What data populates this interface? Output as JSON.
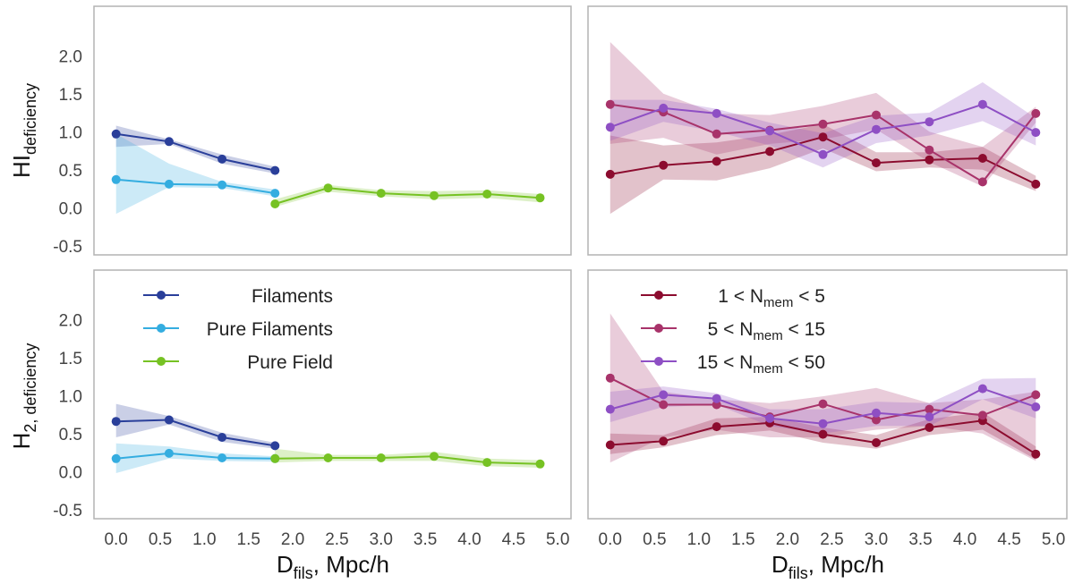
{
  "chart_data": {
    "type": "line",
    "x_ticks": [
      "0.0",
      "0.5",
      "1.0",
      "1.5",
      "2.0",
      "2.5",
      "3.0",
      "3.5",
      "4.0",
      "4.5",
      "5.0"
    ],
    "y_ticks": [
      "-0.5",
      "0.0",
      "0.5",
      "1.0",
      "1.5",
      "2.0"
    ],
    "xlim": [
      -0.25,
      5.15
    ],
    "ylim": [
      -0.62,
      2.65
    ],
    "xlabel": {
      "main": "D",
      "sub": "fils",
      "rest": ", Mpc/h"
    },
    "ylabels": {
      "hi": {
        "main": "HI",
        "sub": "deficiency"
      },
      "h2": {
        "main": "H",
        "sub": "2, deficiency"
      }
    },
    "legends": {
      "left": [
        {
          "label": "Filaments",
          "color": "#2a3f9a"
        },
        {
          "label": "Pure Filaments",
          "color": "#34ade0"
        },
        {
          "label": "Pure Field",
          "color": "#76c223"
        }
      ],
      "right": [
        {
          "pre": "1 < N",
          "sub": "mem",
          "post": " < 5",
          "color": "#8c0c2f"
        },
        {
          "pre": "5 < N",
          "sub": "mem",
          "post": " < 15",
          "color": "#a8336a"
        },
        {
          "pre": "15 < N",
          "sub": "mem",
          "post": " < 50",
          "color": "#8e4fc4"
        }
      ]
    },
    "panels": [
      {
        "id": "hi-environment",
        "series": [
          {
            "name": "Filaments",
            "color": "#2a3f9a",
            "x": [
              0.0,
              0.6,
              1.2,
              1.8
            ],
            "y": [
              0.97,
              0.87,
              0.64,
              0.49
            ],
            "lower": [
              0.8,
              0.84,
              0.58,
              0.45
            ],
            "upper": [
              1.08,
              0.9,
              0.7,
              0.54
            ]
          },
          {
            "name": "Pure Filaments",
            "color": "#34ade0",
            "x": [
              0.0,
              0.6,
              1.2,
              1.8
            ],
            "y": [
              0.37,
              0.31,
              0.3,
              0.19
            ],
            "lower": [
              -0.08,
              0.27,
              0.26,
              0.15
            ],
            "upper": [
              0.97,
              0.58,
              0.34,
              0.24
            ]
          },
          {
            "name": "Pure Field",
            "color": "#76c223",
            "x": [
              1.8,
              2.4,
              3.0,
              3.6,
              4.2,
              4.8
            ],
            "y": [
              0.05,
              0.26,
              0.19,
              0.16,
              0.18,
              0.13
            ],
            "lower": [
              0.01,
              0.21,
              0.15,
              0.11,
              0.13,
              0.07
            ],
            "upper": [
              0.11,
              0.3,
              0.23,
              0.22,
              0.23,
              0.18
            ]
          }
        ]
      },
      {
        "id": "hi-groups",
        "series": [
          {
            "name": "1 < Nmem < 5",
            "color": "#8c0c2f",
            "x": [
              0.0,
              0.6,
              1.2,
              1.8,
              2.4,
              3.0,
              3.6,
              4.2,
              4.8
            ],
            "y": [
              0.44,
              0.56,
              0.61,
              0.74,
              0.93,
              0.59,
              0.63,
              0.65,
              0.31
            ],
            "lower": [
              -0.08,
              0.37,
              0.36,
              0.52,
              0.78,
              0.48,
              0.53,
              0.5,
              0.22
            ],
            "upper": [
              0.95,
              0.82,
              0.86,
              0.96,
              1.1,
              0.73,
              0.73,
              0.8,
              0.42
            ]
          },
          {
            "name": "5 < Nmem < 15",
            "color": "#a8336a",
            "x": [
              0.0,
              0.6,
              1.2,
              1.8,
              2.4,
              3.0,
              3.6,
              4.2,
              4.8
            ],
            "y": [
              1.36,
              1.26,
              0.97,
              1.02,
              1.1,
              1.22,
              0.76,
              0.34,
              1.24
            ],
            "lower": [
              0.84,
              0.92,
              0.7,
              0.84,
              0.9,
              1.03,
              0.6,
              0.28,
              1.12
            ],
            "upper": [
              2.18,
              1.5,
              1.24,
              1.22,
              1.34,
              1.51,
              1.0,
              0.8,
              1.33
            ]
          },
          {
            "name": "15 < Nmem < 50",
            "color": "#8e4fc4",
            "x": [
              0.0,
              0.6,
              1.2,
              1.8,
              2.4,
              3.0,
              3.6,
              4.2,
              4.8
            ],
            "y": [
              1.06,
              1.31,
              1.24,
              1.01,
              0.7,
              1.03,
              1.13,
              1.36,
              0.99
            ],
            "lower": [
              0.88,
              1.13,
              1.0,
              0.82,
              0.53,
              0.85,
              0.95,
              1.14,
              0.82
            ],
            "upper": [
              1.42,
              1.42,
              1.3,
              1.12,
              0.98,
              1.21,
              1.25,
              1.65,
              1.18
            ]
          }
        ]
      },
      {
        "id": "h2-environment",
        "series": [
          {
            "name": "Filaments",
            "color": "#2a3f9a",
            "x": [
              0.0,
              0.6,
              1.2,
              1.8
            ],
            "y": [
              0.66,
              0.68,
              0.45,
              0.34
            ],
            "lower": [
              0.45,
              0.62,
              0.39,
              0.3
            ],
            "upper": [
              0.89,
              0.73,
              0.51,
              0.38
            ]
          },
          {
            "name": "Pure Filaments",
            "color": "#34ade0",
            "x": [
              0.0,
              0.6,
              1.2,
              1.8
            ],
            "y": [
              0.17,
              0.24,
              0.18,
              0.17
            ],
            "lower": [
              -0.02,
              0.17,
              0.14,
              0.13
            ],
            "upper": [
              0.37,
              0.33,
              0.24,
              0.2
            ]
          },
          {
            "name": "Pure Field",
            "color": "#76c223",
            "x": [
              1.8,
              2.4,
              3.0,
              3.6,
              4.2,
              4.8
            ],
            "y": [
              0.17,
              0.18,
              0.18,
              0.2,
              0.12,
              0.1
            ],
            "lower": [
              0.12,
              0.14,
              0.14,
              0.14,
              0.07,
              0.05
            ],
            "upper": [
              0.3,
              0.22,
              0.22,
              0.26,
              0.17,
              0.15
            ]
          }
        ]
      },
      {
        "id": "h2-groups",
        "series": [
          {
            "name": "1 < Nmem < 5",
            "color": "#8c0c2f",
            "x": [
              0.0,
              0.6,
              1.2,
              1.8,
              2.4,
              3.0,
              3.6,
              4.2,
              4.8
            ],
            "y": [
              0.35,
              0.4,
              0.59,
              0.64,
              0.49,
              0.38,
              0.58,
              0.67,
              0.23
            ],
            "lower": [
              0.23,
              0.32,
              0.48,
              0.54,
              0.38,
              0.3,
              0.48,
              0.55,
              0.16
            ],
            "upper": [
              0.5,
              0.48,
              0.7,
              0.72,
              0.58,
              0.48,
              0.69,
              0.78,
              0.33
            ]
          },
          {
            "name": "5 < Nmem < 15",
            "color": "#a8336a",
            "x": [
              0.0,
              0.6,
              1.2,
              1.8,
              2.4,
              3.0,
              3.6,
              4.2,
              4.8
            ],
            "y": [
              1.23,
              0.88,
              0.88,
              0.72,
              0.89,
              0.68,
              0.82,
              0.74,
              1.01
            ],
            "lower": [
              0.12,
              0.45,
              0.55,
              0.45,
              0.45,
              0.55,
              0.6,
              0.5,
              0.14
            ],
            "upper": [
              2.08,
              1.05,
              0.95,
              0.9,
              0.99,
              1.1,
              0.9,
              0.95,
              1.05
            ]
          },
          {
            "name": "15 < Nmem < 50",
            "color": "#8e4fc4",
            "x": [
              0.0,
              0.6,
              1.2,
              1.8,
              2.4,
              3.0,
              3.6,
              4.2,
              4.8
            ],
            "y": [
              0.82,
              1.01,
              0.96,
              0.7,
              0.63,
              0.77,
              0.72,
              1.09,
              0.85
            ],
            "lower": [
              0.65,
              0.85,
              0.88,
              0.6,
              0.5,
              0.6,
              0.6,
              0.95,
              0.7
            ],
            "upper": [
              1.05,
              1.12,
              1.03,
              0.82,
              0.82,
              0.92,
              0.9,
              1.22,
              1.23
            ]
          }
        ]
      }
    ]
  }
}
